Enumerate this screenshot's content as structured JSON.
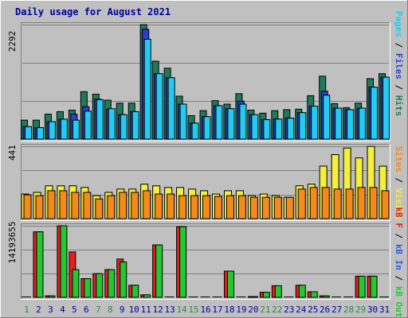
{
  "chart_data": [
    {
      "type": "bar",
      "title": "Daily usage for August 2021",
      "max_label": "2292",
      "legend": [
        "Pages",
        "Files",
        "Hits"
      ],
      "colors": {
        "hits": "#1e7a5a",
        "files": "#2c3fd0",
        "pages": "#22ccf0"
      },
      "ylim": [
        0,
        2292
      ],
      "categories": [
        "1",
        "2",
        "3",
        "4",
        "5",
        "6",
        "7",
        "8",
        "9",
        "10",
        "11",
        "12",
        "13",
        "14",
        "15",
        "16",
        "17",
        "18",
        "19",
        "20",
        "21",
        "22",
        "23",
        "24",
        "25",
        "26",
        "27",
        "28",
        "29",
        "30",
        "31"
      ],
      "series": [
        {
          "name": "Hits",
          "values": [
            380,
            380,
            500,
            550,
            580,
            950,
            900,
            780,
            720,
            720,
            2292,
            1560,
            1420,
            860,
            470,
            570,
            770,
            700,
            910,
            580,
            520,
            570,
            590,
            600,
            870,
            1260,
            710,
            630,
            720,
            1210,
            1310
          ]
        },
        {
          "name": "Files",
          "values": [
            250,
            230,
            350,
            400,
            500,
            650,
            800,
            600,
            490,
            550,
            2200,
            1310,
            1230,
            700,
            320,
            450,
            670,
            610,
            760,
            490,
            390,
            400,
            420,
            530,
            660,
            960,
            620,
            590,
            620,
            1040,
            1240
          ]
        },
        {
          "name": "Pages",
          "values": [
            250,
            230,
            350,
            400,
            380,
            560,
            790,
            610,
            490,
            550,
            2000,
            1310,
            1230,
            700,
            320,
            450,
            670,
            610,
            700,
            490,
            390,
            400,
            420,
            530,
            660,
            880,
            620,
            590,
            620,
            1040,
            1240
          ]
        }
      ]
    },
    {
      "type": "bar",
      "max_label": "441",
      "legend": [
        "Visits",
        "Sites"
      ],
      "colors": {
        "visits": "#f4ee3c",
        "sites": "#f58a1c"
      },
      "ylim": [
        0,
        441
      ],
      "categories": [
        "1",
        "2",
        "3",
        "4",
        "5",
        "6",
        "7",
        "8",
        "9",
        "10",
        "11",
        "12",
        "13",
        "14",
        "15",
        "16",
        "17",
        "18",
        "19",
        "20",
        "21",
        "22",
        "23",
        "24",
        "25",
        "26",
        "27",
        "28",
        "29",
        "30",
        "31"
      ],
      "series": [
        {
          "name": "Visits",
          "values": [
            150,
            160,
            200,
            200,
            200,
            190,
            140,
            160,
            180,
            180,
            210,
            200,
            190,
            190,
            180,
            170,
            150,
            170,
            170,
            140,
            150,
            140,
            130,
            200,
            210,
            320,
            390,
            430,
            370,
            440,
            320
          ]
        },
        {
          "name": "Sites",
          "values": [
            145,
            140,
            170,
            170,
            160,
            160,
            120,
            140,
            160,
            160,
            170,
            150,
            150,
            140,
            140,
            140,
            135,
            140,
            140,
            130,
            130,
            130,
            130,
            180,
            190,
            190,
            180,
            180,
            190,
            190,
            170
          ]
        }
      ]
    },
    {
      "type": "bar",
      "max_label": "14193655",
      "legend": [
        "KBytes F",
        "KBytes In",
        "KBytes Out"
      ],
      "legend_labels": [
        "kB F",
        "kB In",
        "kB Out"
      ],
      "colors": {
        "kb_f": "#e42020",
        "kb_in": "#2f60d8",
        "kb_out": "#22c830"
      },
      "ylim": [
        0,
        14193655
      ],
      "categories": [
        "1",
        "2",
        "3",
        "4",
        "5",
        "6",
        "7",
        "8",
        "9",
        "10",
        "11",
        "12",
        "13",
        "14",
        "15",
        "16",
        "17",
        "18",
        "19",
        "20",
        "21",
        "22",
        "23",
        "24",
        "25",
        "26",
        "27",
        "28",
        "29",
        "30",
        "31"
      ],
      "series": [
        {
          "name": "KBytes F",
          "values": [
            0,
            13000000,
            300000,
            14193655,
            9000000,
            3700000,
            4700000,
            5500000,
            7600000,
            2400000,
            500000,
            10400000,
            0,
            14000000,
            0,
            0,
            0,
            5200000,
            0,
            150000,
            1000000,
            2300000,
            0,
            2400000,
            1100000,
            300000,
            0,
            0,
            4200000,
            4200000,
            0
          ]
        },
        {
          "name": "KBytes In",
          "values": [
            0,
            0,
            0,
            0,
            0,
            0,
            0,
            0,
            0,
            0,
            0,
            0,
            0,
            0,
            0,
            0,
            0,
            0,
            0,
            0,
            0,
            0,
            0,
            0,
            0,
            0,
            0,
            0,
            0,
            0,
            0
          ]
        },
        {
          "name": "KBytes Out",
          "values": [
            0,
            13000000,
            300000,
            14193655,
            5500000,
            3700000,
            4700000,
            5500000,
            7000000,
            2400000,
            500000,
            10400000,
            0,
            14000000,
            0,
            0,
            0,
            5200000,
            0,
            150000,
            1000000,
            2300000,
            0,
            2400000,
            1100000,
            300000,
            0,
            0,
            4200000,
            4200000,
            0
          ]
        }
      ]
    }
  ],
  "x_labels": {
    "days": [
      "1",
      "2",
      "3",
      "4",
      "5",
      "6",
      "7",
      "8",
      "9",
      "10",
      "11",
      "12",
      "13",
      "14",
      "15",
      "16",
      "17",
      "18",
      "19",
      "20",
      "21",
      "22",
      "23",
      "24",
      "25",
      "26",
      "27",
      "28",
      "29",
      "30",
      "31"
    ],
    "weekend_color": "#2c8a4c",
    "weekday_color": "#0000a0",
    "weekend_days": [
      1,
      7,
      8,
      14,
      15,
      21,
      22,
      28,
      29
    ]
  }
}
